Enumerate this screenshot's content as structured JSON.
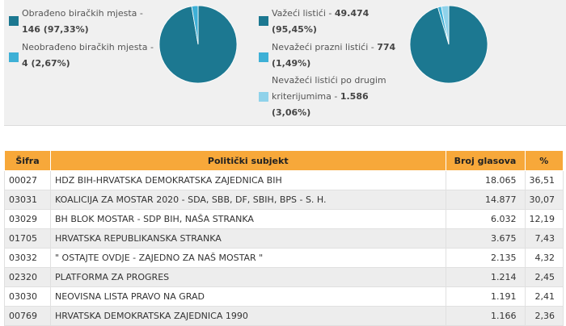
{
  "colors": {
    "dark_teal": "#1c7891",
    "light_blue": "#3eb0d6",
    "pale_blue": "#8fd2ea",
    "header_orange": "#f7a83a"
  },
  "polling": {
    "processed_label": "Obrađeno biračkih mjesta -",
    "processed_value": "146 (97,33%)",
    "unprocessed_label": "Neobrađeno biračkih mjesta -",
    "unprocessed_value": "4 (2,67%)",
    "pie": [
      97.33,
      2.67
    ]
  },
  "ballots": {
    "valid_label": "Važeći listići -",
    "valid_value": "49.474",
    "valid_pct": "(95,45%)",
    "blank_label": "Nevažeći prazni listići -",
    "blank_value": "774",
    "blank_pct": "(1,49%)",
    "other_label_1": "Nevažeći listići po drugim",
    "other_label_2": "kriterijumima -",
    "other_value": "1.586",
    "other_pct": "(3,06%)",
    "pie": [
      95.45,
      1.49,
      3.06
    ]
  },
  "table": {
    "headers": {
      "code": "Šifra",
      "subject": "Politički subjekt",
      "votes": "Broj glasova",
      "pct": "%"
    },
    "rows": [
      {
        "code": "00027",
        "subject": "HDZ BIH-HRVATSKA DEMOKRATSKA ZAJEDNICA BIH",
        "votes": "18.065",
        "pct": "36,51"
      },
      {
        "code": "03031",
        "subject": "KOALICIJA ZA MOSTAR 2020 - SDA, SBB, DF, SBIH, BPS - S. H.",
        "votes": "14.877",
        "pct": "30,07"
      },
      {
        "code": "03029",
        "subject": "BH BLOK MOSTAR - SDP BIH, NAŠA STRANKA",
        "votes": "6.032",
        "pct": "12,19"
      },
      {
        "code": "01705",
        "subject": "HRVATSKA REPUBLIKANSKA STRANKA",
        "votes": "3.675",
        "pct": "7,43"
      },
      {
        "code": "03032",
        "subject": "\" OSTAJTE OVDJE - ZAJEDNO ZA NAŠ MOSTAR \"",
        "votes": "2.135",
        "pct": "4,32"
      },
      {
        "code": "02320",
        "subject": "PLATFORMA ZA PROGRES",
        "votes": "1.214",
        "pct": "2,45"
      },
      {
        "code": "03030",
        "subject": "NEOVISNA LISTA PRAVO NA GRAD",
        "votes": "1.191",
        "pct": "2,41"
      },
      {
        "code": "00769",
        "subject": "HRVATSKA DEMOKRATSKA ZAJEDNICA 1990",
        "votes": "1.166",
        "pct": "2,36"
      }
    ]
  }
}
